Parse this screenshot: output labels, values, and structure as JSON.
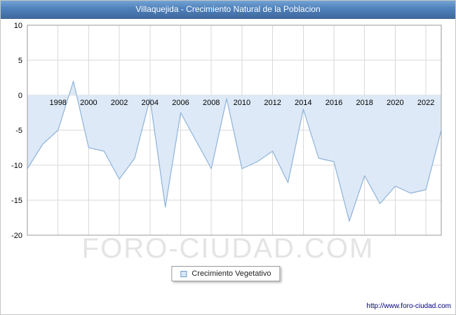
{
  "header": {
    "title": "Villaquejida - Crecimiento Natural de la Poblacion"
  },
  "watermark": "FORO-CIUDAD.COM",
  "legend": {
    "label": "Crecimiento Vegetativo"
  },
  "footer": {
    "url": "http://www.foro-ciudad.com"
  },
  "chart_data": {
    "type": "area",
    "title": "Villaquejida - Crecimiento Natural de la Poblacion",
    "series_name": "Crecimiento Vegetativo",
    "x": [
      1996,
      1997,
      1998,
      1999,
      2000,
      2001,
      2002,
      2003,
      2004,
      2005,
      2006,
      2007,
      2008,
      2009,
      2010,
      2011,
      2012,
      2013,
      2014,
      2015,
      2016,
      2017,
      2018,
      2019,
      2020,
      2021,
      2022,
      2023
    ],
    "values": [
      -10.5,
      -7,
      -5,
      2,
      -7.5,
      -8,
      -12,
      -9,
      -0.5,
      -16,
      -2.5,
      -6.5,
      -10.5,
      -0.5,
      -10.5,
      -9.5,
      -8,
      -12.5,
      -2,
      -9,
      -9.5,
      -18,
      -11.5,
      -15.5,
      -13,
      -14,
      -13.5,
      -5
    ],
    "xticks": [
      1998,
      2000,
      2002,
      2004,
      2006,
      2008,
      2010,
      2012,
      2014,
      2016,
      2018,
      2020,
      2022
    ],
    "yticks": [
      10,
      5,
      0,
      -5,
      -10,
      -15,
      -20
    ],
    "ylim": [
      -20,
      10
    ],
    "xlabel": "",
    "ylabel": "",
    "grid": true,
    "baseline": 0,
    "legend_position": "bottom",
    "colors": {
      "fill": "#dde9f7",
      "line": "#8fb3d9",
      "grid": "#d9d9d9",
      "plot_border": "#9a9a9a",
      "tick_text": "#000000",
      "titlebar": "#4e81ba",
      "watermark": "#e4e4e4",
      "url_text": "#000080"
    }
  }
}
